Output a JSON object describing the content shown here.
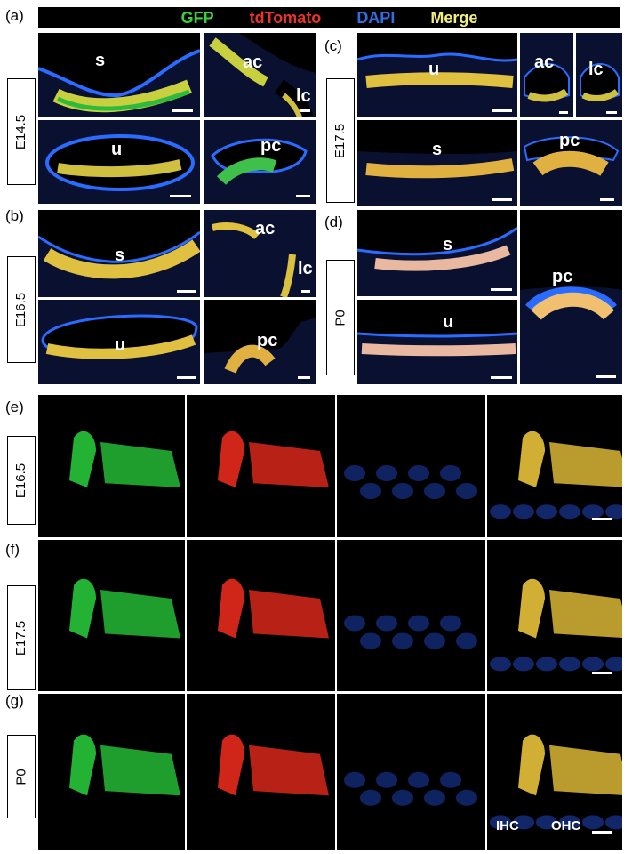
{
  "header": {
    "channels": [
      {
        "label": "GFP",
        "color": "#3ad13a"
      },
      {
        "label": "tdTomato",
        "color": "#e8322c"
      },
      {
        "label": "DAPI",
        "color": "#2f6fe0"
      },
      {
        "label": "Merge",
        "color": "#f2ee7a"
      }
    ]
  },
  "panels": {
    "a": {
      "letter": "(a)",
      "stage": "E14.5",
      "tissues": [
        "s",
        "ac",
        "lc",
        "u",
        "pc"
      ]
    },
    "b": {
      "letter": "(b)",
      "stage": "E16.5",
      "tissues": [
        "s",
        "ac",
        "lc",
        "u",
        "pc"
      ]
    },
    "c": {
      "letter": "(c)",
      "stage": "E17.5",
      "tissues": [
        "u",
        "ac",
        "lc",
        "s",
        "pc"
      ]
    },
    "d": {
      "letter": "(d)",
      "stage": "P0",
      "tissues": [
        "s",
        "u",
        "pc"
      ]
    },
    "e": {
      "letter": "(e)",
      "stage": "E16.5"
    },
    "f": {
      "letter": "(f)",
      "stage": "E17.5"
    },
    "g": {
      "letter": "(g)",
      "stage": "P0",
      "annotations": [
        "IHC",
        "OHC"
      ]
    }
  },
  "colors": {
    "gfp": "#27c53a",
    "tdtomato": "#e62a1c",
    "dapi": "#1e3fb0",
    "merge": "#e8c23a",
    "background": "#000000"
  }
}
